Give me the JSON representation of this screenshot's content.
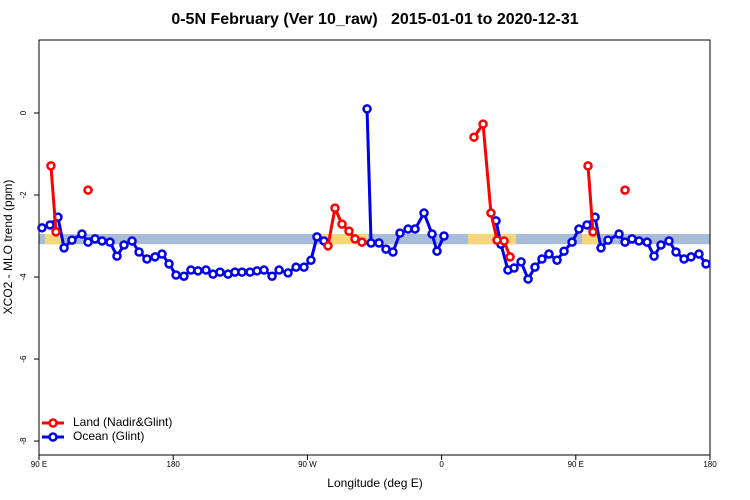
{
  "chart_data": {
    "type": "line",
    "title": "0-5N February (Ver 10_raw)   2015-01-01 to 2020-12-31",
    "xlabel": "Longitude (deg E)",
    "ylabel": "XCO2 - MLO trend (ppm)",
    "xlim": [
      90,
      540
    ],
    "xticks": [
      {
        "value": 90,
        "label": "90 E"
      },
      180,
      {
        "value": 270,
        "label": "90 W"
      },
      {
        "value": 360,
        "label": "0"
      },
      {
        "value": 450,
        "label": "90 E"
      },
      {
        "value": 540,
        "label": "180"
      }
    ],
    "ylim": [
      -8.34,
      1.78
    ],
    "yticks": [
      0,
      -2,
      -4,
      -6,
      -8
    ],
    "band_ylim": [
      -3.2,
      -2.95
    ],
    "band_color": "#a8bcd8",
    "band_highlight_color": "#f5d77a",
    "legend": "bottomleft",
    "series": [
      {
        "name": "Land (Nadir&Glint)",
        "color": "#ff0000",
        "x": [
          98.0,
          101.4,
          null,
          122.9,
          null,
          283.8,
          288.5,
          293.2,
          297.9,
          301.9,
          306.6,
          null,
          381.7,
          387.8,
          393.1,
          397.2,
          401.9,
          405.9,
          null,
          458.2,
          461.5,
          null,
          483.0
        ],
        "values": [
          -1.29,
          -2.9,
          null,
          -1.88,
          null,
          -3.24,
          -2.32,
          -2.71,
          -2.88,
          -3.07,
          -3.15,
          null,
          -0.59,
          -0.27,
          -2.44,
          -3.1,
          -3.12,
          -3.51,
          null,
          -1.29,
          -2.9,
          null,
          -1.88
        ]
      },
      {
        "name": "Ocean (Glint)",
        "color": "#0000ee",
        "x": [
          92.0,
          97.4,
          102.7,
          106.8,
          112.1,
          118.8,
          122.9,
          127.6,
          132.3,
          137.6,
          142.3,
          147.0,
          152.4,
          157.1,
          162.4,
          167.8,
          172.5,
          177.2,
          181.9,
          187.2,
          191.9,
          196.6,
          202.0,
          206.7,
          211.4,
          216.8,
          221.4,
          226.1,
          231.5,
          236.2,
          240.9,
          246.3,
          251.0,
          257.0,
          262.4,
          267.7,
          272.4,
          276.4,
          281.1,
          null,
          310.0,
          312.7,
          318.0,
          322.7,
          327.4,
          332.1,
          337.5,
          342.2,
          348.2,
          353.6,
          356.9,
          361.6,
          null,
          396.5,
          399.8,
          404.5,
          408.6,
          413.3,
          418.0,
          422.6,
          427.3,
          432.0,
          437.4,
          442.1,
          447.5,
          452.1,
          457.5,
          462.9,
          466.9,
          471.6,
          479.0,
          483.0,
          487.7,
          492.4,
          497.8,
          502.5,
          507.1,
          512.5,
          517.2,
          522.6,
          527.3,
          532.6,
          537.3
        ],
        "values": [
          -2.8,
          -2.73,
          -2.54,
          -3.29,
          -3.1,
          -2.95,
          -3.15,
          -3.07,
          -3.12,
          -3.15,
          -3.49,
          -3.22,
          -3.12,
          -3.39,
          -3.56,
          -3.51,
          -3.44,
          -3.68,
          -3.95,
          -3.98,
          -3.83,
          -3.85,
          -3.83,
          -3.93,
          -3.88,
          -3.93,
          -3.88,
          -3.88,
          -3.88,
          -3.85,
          -3.83,
          -3.98,
          -3.83,
          -3.9,
          -3.76,
          -3.76,
          -3.59,
          -3.02,
          -3.12,
          null,
          0.1,
          -3.17,
          -3.17,
          -3.32,
          -3.39,
          -2.93,
          -2.83,
          -2.83,
          -2.44,
          -2.95,
          -3.37,
          -3.0,
          null,
          -2.63,
          -3.2,
          -3.83,
          -3.78,
          -3.63,
          -4.05,
          -3.76,
          -3.56,
          -3.44,
          -3.59,
          -3.37,
          -3.15,
          -2.83,
          -2.73,
          -2.54,
          -3.29,
          -3.1,
          -2.95,
          -3.15,
          -3.07,
          -3.12,
          -3.15,
          -3.49,
          -3.22,
          -3.12,
          -3.39,
          -3.56,
          -3.51,
          -3.44,
          -3.68
        ]
      }
    ]
  }
}
